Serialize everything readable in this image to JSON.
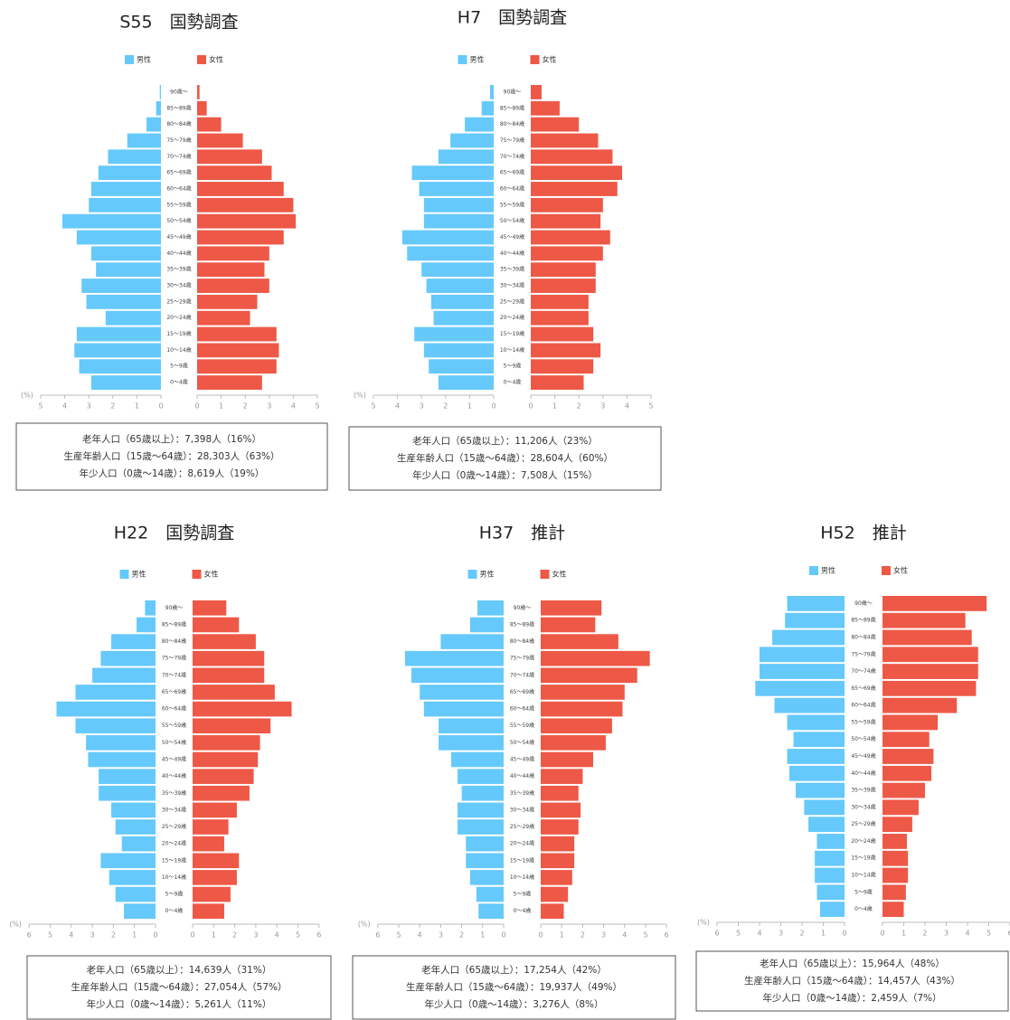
{
  "chart_data": [
    {
      "type": "pyramid",
      "title": "S55　国勢調査",
      "xlabel": "(%)",
      "categories": [
        "0～4歳",
        "5～9歳",
        "10～14歳",
        "15～19歳",
        "20～24歳",
        "25～29歳",
        "30～34歳",
        "35～39歳",
        "40～44歳",
        "45～49歳",
        "50～54歳",
        "55～59歳",
        "60～64歳",
        "65～69歳",
        "70～74歳",
        "75～79歳",
        "80～84歳",
        "85～89歳",
        "90歳～"
      ],
      "series": [
        {
          "name": "男性",
          "color": "#66c9fb",
          "values": [
            2.9,
            3.4,
            3.6,
            3.5,
            2.3,
            3.1,
            3.3,
            2.7,
            2.9,
            3.5,
            4.1,
            3.0,
            2.9,
            2.6,
            2.2,
            1.4,
            0.6,
            0.2,
            0.05
          ]
        },
        {
          "name": "女性",
          "color": "#ee5846",
          "values": [
            2.7,
            3.3,
            3.4,
            3.3,
            2.2,
            2.5,
            3.0,
            2.8,
            3.0,
            3.6,
            4.1,
            4.0,
            3.6,
            3.1,
            2.7,
            1.9,
            1.0,
            0.4,
            0.1
          ]
        }
      ],
      "xlim": [
        0,
        5
      ],
      "xticks": [
        0,
        1,
        2,
        3,
        4,
        5
      ],
      "annotations": [
        "老年人口（65歳以上）：7,398人（16%）",
        "生産年齢人口（15歳～64歳）：28,303人（63%）",
        "年少人口（0歳～14歳）：8,619人（19%）"
      ]
    },
    {
      "type": "pyramid",
      "title": "H7　国勢調査",
      "xlabel": "(%)",
      "categories": [
        "0～4歳",
        "5～9歳",
        "10～14歳",
        "15～19歳",
        "20～24歳",
        "25～29歳",
        "30～34歳",
        "35～39歳",
        "40～44歳",
        "45～49歳",
        "50～54歳",
        "55～59歳",
        "60～64歳",
        "65～69歳",
        "70～74歳",
        "75～79歳",
        "80～84歳",
        "85～89歳",
        "90歳～"
      ],
      "series": [
        {
          "name": "男性",
          "color": "#66c9fb",
          "values": [
            2.3,
            2.7,
            2.9,
            3.3,
            2.5,
            2.6,
            2.8,
            3.0,
            3.6,
            3.8,
            2.9,
            2.9,
            3.1,
            3.4,
            2.3,
            1.8,
            1.2,
            0.5,
            0.15
          ]
        },
        {
          "name": "女性",
          "color": "#ee5846",
          "values": [
            2.2,
            2.6,
            2.9,
            2.6,
            2.4,
            2.4,
            2.7,
            2.7,
            3.0,
            3.3,
            2.9,
            3.0,
            3.6,
            3.8,
            3.4,
            2.8,
            2.0,
            1.2,
            0.45
          ]
        }
      ],
      "xlim": [
        0,
        5
      ],
      "xticks": [
        0,
        1,
        2,
        3,
        4,
        5
      ],
      "annotations": [
        "老年人口（65歳以上）：11,206人（23%）",
        "生産年齢人口（15歳～64歳）：28,604人（60%）",
        "年少人口（0歳～14歳）：7,508人（15%）"
      ]
    },
    {
      "type": "pyramid",
      "title": "H22　国勢調査",
      "xlabel": "(%)",
      "categories": [
        "0～4歳",
        "5～9歳",
        "10～14歳",
        "15～19歳",
        "20～24歳",
        "25～29歳",
        "30～34歳",
        "35～39歳",
        "40～44歳",
        "45～49歳",
        "50～54歳",
        "55～59歳",
        "60～64歳",
        "65～69歳",
        "70～74歳",
        "75～79歳",
        "80～84歳",
        "85～89歳",
        "90歳～"
      ],
      "series": [
        {
          "name": "男性",
          "color": "#66c9fb",
          "values": [
            1.5,
            1.9,
            2.2,
            2.6,
            1.6,
            1.9,
            2.1,
            2.7,
            2.7,
            3.2,
            3.3,
            3.8,
            4.7,
            3.8,
            3.0,
            2.6,
            2.1,
            0.9,
            0.5
          ]
        },
        {
          "name": "女性",
          "color": "#ee5846",
          "values": [
            1.5,
            1.8,
            2.1,
            2.2,
            1.5,
            1.7,
            2.1,
            2.7,
            2.9,
            3.1,
            3.2,
            3.7,
            4.7,
            3.9,
            3.4,
            3.4,
            3.0,
            2.2,
            1.6
          ]
        }
      ],
      "xlim": [
        0,
        6
      ],
      "xticks": [
        0,
        1,
        2,
        3,
        4,
        5,
        6
      ],
      "annotations": [
        "老年人口（65歳以上）：14,639人（31%）",
        "生産年齢人口（15歳～64歳）：27,054人（57%）",
        "年少人口（0歳～14歳）：5,261人（11%）"
      ]
    },
    {
      "type": "pyramid",
      "title": "H37　推計",
      "xlabel": "(%)",
      "categories": [
        "0～4歳",
        "5～9歳",
        "10～14歳",
        "15～19歳",
        "20～24歳",
        "25～29歳",
        "30～34歳",
        "35～39歳",
        "40～44歳",
        "45～49歳",
        "50～54歳",
        "55～59歳",
        "60～64歳",
        "65～69歳",
        "70～74歳",
        "75～79歳",
        "80～84歳",
        "85～89歳",
        "90歳～"
      ],
      "series": [
        {
          "name": "男性",
          "color": "#66c9fb",
          "values": [
            1.2,
            1.3,
            1.6,
            1.8,
            1.8,
            2.2,
            2.2,
            2.0,
            2.2,
            2.5,
            3.1,
            3.1,
            3.8,
            4.0,
            4.4,
            4.7,
            3.0,
            1.6,
            1.25
          ]
        },
        {
          "name": "女性",
          "color": "#ee5846",
          "values": [
            1.1,
            1.3,
            1.5,
            1.6,
            1.6,
            1.8,
            1.9,
            1.8,
            2.0,
            2.5,
            3.1,
            3.4,
            3.9,
            4.0,
            4.6,
            5.2,
            3.7,
            2.6,
            2.9
          ]
        }
      ],
      "xlim": [
        0,
        6
      ],
      "xticks": [
        0,
        1,
        2,
        3,
        4,
        5,
        6
      ],
      "annotations": [
        "老年人口（65歳以上）：17,254人（42%）",
        "生産年齢人口（15歳～64歳）：19,937人（49%）",
        "年少人口（0歳～14歳）：3,276人（8%）"
      ]
    },
    {
      "type": "pyramid",
      "title": "H52　推計",
      "xlabel": "(%)",
      "categories": [
        "0～4歳",
        "5～9歳",
        "10～14歳",
        "15～19歳",
        "20～24歳",
        "25～29歳",
        "30～34歳",
        "35～39歳",
        "40～44歳",
        "45～49歳",
        "50～54歳",
        "55～59歳",
        "60～64歳",
        "65～69歳",
        "70～74歳",
        "75～79歳",
        "80～84歳",
        "85～89歳",
        "90歳～"
      ],
      "series": [
        {
          "name": "男性",
          "color": "#66c9fb",
          "values": [
            1.15,
            1.3,
            1.4,
            1.4,
            1.3,
            1.7,
            1.9,
            2.3,
            2.6,
            2.7,
            2.4,
            2.7,
            3.3,
            4.2,
            4.0,
            4.0,
            3.4,
            2.8,
            2.7
          ]
        },
        {
          "name": "女性",
          "color": "#ee5846",
          "values": [
            1.0,
            1.1,
            1.2,
            1.2,
            1.15,
            1.4,
            1.7,
            2.0,
            2.3,
            2.4,
            2.2,
            2.6,
            3.5,
            4.4,
            4.5,
            4.5,
            4.2,
            3.9,
            4.9
          ]
        }
      ],
      "xlim": [
        0,
        6
      ],
      "xticks": [
        0,
        1,
        2,
        3,
        4,
        5,
        6
      ],
      "annotations": [
        "老年人口（65歳以上）：15,964人（48%）",
        "生産年齢人口（15歳～64歳）：14,457人（43%）",
        "年少人口（0歳～14歳）：2,459人（7%）"
      ]
    }
  ]
}
